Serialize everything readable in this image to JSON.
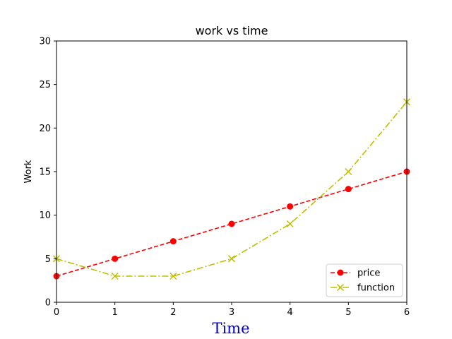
{
  "chart_data": {
    "type": "line",
    "title": "work vs time",
    "xlabel": "Time",
    "ylabel": "Work",
    "xlim": [
      0,
      6
    ],
    "ylim": [
      0,
      30
    ],
    "x_ticks": [
      0,
      1,
      2,
      3,
      4,
      5,
      6
    ],
    "y_ticks": [
      0,
      5,
      10,
      15,
      20,
      25,
      30
    ],
    "x": [
      0,
      1,
      2,
      3,
      4,
      5,
      6
    ],
    "series": [
      {
        "name": "price",
        "values": [
          3,
          5,
          7,
          9,
          11,
          13,
          15
        ],
        "color": "#ff0000",
        "marker": "circle",
        "linestyle": "dashed"
      },
      {
        "name": "function",
        "values": [
          5,
          3,
          3,
          5,
          9,
          15,
          23
        ],
        "color": "#bfbf00",
        "marker": "x",
        "linestyle": "dashdot"
      }
    ],
    "xlabel_color": "#0000cc",
    "grid": false,
    "legend_position": "lower right"
  }
}
